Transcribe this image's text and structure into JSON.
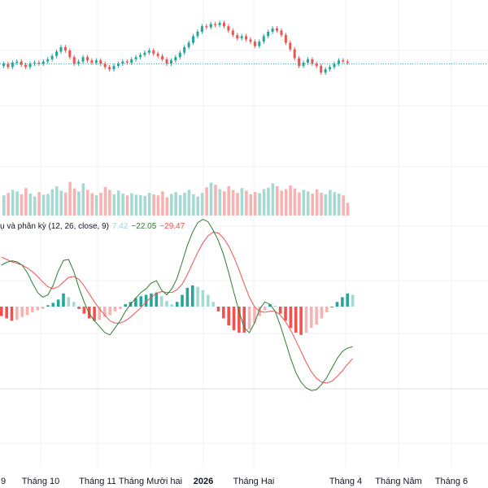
{
  "chart_data": {
    "type": "candlestick",
    "x_ticks": [
      "9",
      "Tháng 10",
      "Tháng 11",
      "Tháng Mười hai",
      "2026",
      "Tháng Hai",
      "Tháng 4",
      "Tháng Năm",
      "Tháng 6"
    ],
    "x_ticks_bold": [
      "2026"
    ],
    "candles": [
      {
        "o": 0.25,
        "c": 0.27
      },
      {
        "o": 0.27,
        "c": 0.24
      },
      {
        "o": 0.24,
        "c": 0.28
      },
      {
        "o": 0.28,
        "c": 0.29
      },
      {
        "o": 0.29,
        "c": 0.26
      },
      {
        "o": 0.26,
        "c": 0.24
      },
      {
        "o": 0.24,
        "c": 0.27
      },
      {
        "o": 0.27,
        "c": 0.28
      },
      {
        "o": 0.28,
        "c": 0.27
      },
      {
        "o": 0.27,
        "c": 0.29
      },
      {
        "o": 0.29,
        "c": 0.31
      },
      {
        "o": 0.31,
        "c": 0.34
      },
      {
        "o": 0.34,
        "c": 0.38
      },
      {
        "o": 0.38,
        "c": 0.42
      },
      {
        "o": 0.42,
        "c": 0.39
      },
      {
        "o": 0.39,
        "c": 0.33
      },
      {
        "o": 0.33,
        "c": 0.27
      },
      {
        "o": 0.27,
        "c": 0.29
      },
      {
        "o": 0.29,
        "c": 0.33
      },
      {
        "o": 0.33,
        "c": 0.3
      },
      {
        "o": 0.3,
        "c": 0.28
      },
      {
        "o": 0.28,
        "c": 0.3
      },
      {
        "o": 0.3,
        "c": 0.27
      },
      {
        "o": 0.27,
        "c": 0.24
      },
      {
        "o": 0.24,
        "c": 0.22
      },
      {
        "o": 0.22,
        "c": 0.25
      },
      {
        "o": 0.25,
        "c": 0.27
      },
      {
        "o": 0.27,
        "c": 0.29
      },
      {
        "o": 0.29,
        "c": 0.28
      },
      {
        "o": 0.28,
        "c": 0.31
      },
      {
        "o": 0.31,
        "c": 0.33
      },
      {
        "o": 0.33,
        "c": 0.35
      },
      {
        "o": 0.35,
        "c": 0.37
      },
      {
        "o": 0.37,
        "c": 0.39
      },
      {
        "o": 0.39,
        "c": 0.36
      },
      {
        "o": 0.36,
        "c": 0.34
      },
      {
        "o": 0.34,
        "c": 0.31
      },
      {
        "o": 0.31,
        "c": 0.27
      },
      {
        "o": 0.27,
        "c": 0.3
      },
      {
        "o": 0.3,
        "c": 0.33
      },
      {
        "o": 0.33,
        "c": 0.37
      },
      {
        "o": 0.37,
        "c": 0.42
      },
      {
        "o": 0.42,
        "c": 0.46
      },
      {
        "o": 0.46,
        "c": 0.52
      },
      {
        "o": 0.52,
        "c": 0.56
      },
      {
        "o": 0.56,
        "c": 0.61
      },
      {
        "o": 0.61,
        "c": 0.6
      },
      {
        "o": 0.6,
        "c": 0.63
      },
      {
        "o": 0.63,
        "c": 0.62
      },
      {
        "o": 0.62,
        "c": 0.64
      },
      {
        "o": 0.64,
        "c": 0.61
      },
      {
        "o": 0.61,
        "c": 0.57
      },
      {
        "o": 0.57,
        "c": 0.53
      },
      {
        "o": 0.53,
        "c": 0.5
      },
      {
        "o": 0.5,
        "c": 0.52
      },
      {
        "o": 0.52,
        "c": 0.49
      },
      {
        "o": 0.49,
        "c": 0.47
      },
      {
        "o": 0.47,
        "c": 0.43
      },
      {
        "o": 0.43,
        "c": 0.47
      },
      {
        "o": 0.47,
        "c": 0.52
      },
      {
        "o": 0.52,
        "c": 0.56
      },
      {
        "o": 0.56,
        "c": 0.59
      },
      {
        "o": 0.59,
        "c": 0.57
      },
      {
        "o": 0.57,
        "c": 0.53
      },
      {
        "o": 0.53,
        "c": 0.46
      },
      {
        "o": 0.46,
        "c": 0.4
      },
      {
        "o": 0.4,
        "c": 0.32
      },
      {
        "o": 0.32,
        "c": 0.25
      },
      {
        "o": 0.25,
        "c": 0.28
      },
      {
        "o": 0.28,
        "c": 0.31
      },
      {
        "o": 0.31,
        "c": 0.27
      },
      {
        "o": 0.27,
        "c": 0.25
      },
      {
        "o": 0.25,
        "c": 0.19
      },
      {
        "o": 0.19,
        "c": 0.22
      },
      {
        "o": 0.22,
        "c": 0.24
      },
      {
        "o": 0.24,
        "c": 0.27
      },
      {
        "o": 0.27,
        "c": 0.3
      },
      {
        "o": 0.3,
        "c": 0.29
      },
      {
        "o": 0.29,
        "c": 0.28
      }
    ],
    "last_price_level": 0.27,
    "volume": [
      0.55,
      0.62,
      0.7,
      0.66,
      0.58,
      0.75,
      0.6,
      0.52,
      0.64,
      0.57,
      0.59,
      0.72,
      0.8,
      0.68,
      0.63,
      0.92,
      0.74,
      0.66,
      0.88,
      0.7,
      0.61,
      0.55,
      0.62,
      0.78,
      0.7,
      0.58,
      0.68,
      0.6,
      0.55,
      0.61,
      0.57,
      0.56,
      0.54,
      0.62,
      0.58,
      0.55,
      0.66,
      0.5,
      0.59,
      0.64,
      0.56,
      0.62,
      0.7,
      0.58,
      0.52,
      0.62,
      0.77,
      0.9,
      0.84,
      0.72,
      0.66,
      0.8,
      0.7,
      0.62,
      0.75,
      0.68,
      0.58,
      0.64,
      0.61,
      0.72,
      0.76,
      0.88,
      0.8,
      0.68,
      0.72,
      0.82,
      0.74,
      0.63,
      0.7,
      0.66,
      0.6,
      0.72,
      0.62,
      0.58,
      0.7,
      0.64,
      0.6,
      0.55,
      0.35
    ],
    "macd_legend": {
      "label": "ụ và phân kỳ (12, 26, close, 9)",
      "hist_value": "7.42",
      "macd_value": "−22.05",
      "signal_value": "−29.47"
    },
    "macd": [
      0.88,
      0.94,
      0.97,
      0.95,
      0.88,
      0.72,
      0.5,
      0.3,
      0.2,
      0.25,
      0.45,
      0.75,
      0.98,
      1.0,
      0.75,
      0.4,
      0.1,
      -0.15,
      -0.3,
      -0.42,
      -0.55,
      -0.6,
      -0.45,
      -0.3,
      -0.1,
      0.05,
      0.18,
      0.3,
      0.38,
      0.5,
      0.55,
      0.35,
      0.25,
      0.38,
      0.6,
      0.95,
      1.3,
      1.58,
      1.78,
      1.85,
      1.8,
      1.62,
      1.4,
      1.1,
      0.72,
      0.3,
      -0.1,
      -0.45,
      -0.55,
      -0.35,
      -0.05,
      0.1,
      0.05,
      -0.1,
      -0.4,
      -0.75,
      -1.1,
      -1.4,
      -1.6,
      -1.72,
      -1.78,
      -1.76,
      -1.65,
      -1.5,
      -1.3,
      -1.1,
      -0.95,
      -0.88,
      -0.85
    ],
    "signal": [
      1.05,
      1.0,
      0.95,
      0.92,
      0.88,
      0.82,
      0.74,
      0.64,
      0.52,
      0.42,
      0.38,
      0.42,
      0.52,
      0.62,
      0.64,
      0.58,
      0.44,
      0.27,
      0.1,
      -0.05,
      -0.18,
      -0.3,
      -0.35,
      -0.35,
      -0.3,
      -0.22,
      -0.12,
      -0.02,
      0.1,
      0.2,
      0.28,
      0.32,
      0.3,
      0.3,
      0.36,
      0.48,
      0.68,
      0.92,
      1.15,
      1.35,
      1.5,
      1.58,
      1.56,
      1.45,
      1.28,
      1.05,
      0.78,
      0.48,
      0.2,
      0.0,
      -0.1,
      -0.12,
      -0.1,
      -0.1,
      -0.18,
      -0.32,
      -0.5,
      -0.72,
      -0.95,
      -1.18,
      -1.38,
      -1.52,
      -1.6,
      -1.62,
      -1.58,
      -1.48,
      -1.36,
      -1.22,
      -1.1
    ],
    "histogram": [
      -0.2,
      -0.25,
      -0.3,
      -0.28,
      -0.22,
      -0.18,
      -0.12,
      -0.08,
      -0.05,
      0.03,
      0.08,
      0.15,
      0.28,
      0.2,
      0.1,
      -0.05,
      -0.15,
      -0.25,
      -0.3,
      -0.28,
      -0.22,
      -0.18,
      -0.1,
      -0.05,
      0.05,
      0.1,
      0.18,
      0.22,
      0.25,
      0.28,
      0.3,
      0.22,
      0.12,
      0.05,
      0.1,
      0.25,
      0.4,
      0.45,
      0.42,
      0.35,
      0.25,
      0.1,
      -0.1,
      -0.25,
      -0.4,
      -0.5,
      -0.55,
      -0.55,
      -0.48,
      -0.35,
      -0.2,
      -0.08,
      0.05,
      0.02,
      -0.15,
      -0.3,
      -0.45,
      -0.55,
      -0.6,
      -0.55,
      -0.45,
      -0.38,
      -0.25,
      -0.12,
      0.0,
      0.1,
      0.2,
      0.28,
      0.25
    ],
    "colors": {
      "up": "#26a69a",
      "down": "#ef5350",
      "up_light": "#a5d9d2",
      "down_light": "#f7b3b1",
      "macd_line": "#2e7d32",
      "signal_line": "#ef5350",
      "grid": "#eef0f3",
      "text": "#131722"
    }
  }
}
